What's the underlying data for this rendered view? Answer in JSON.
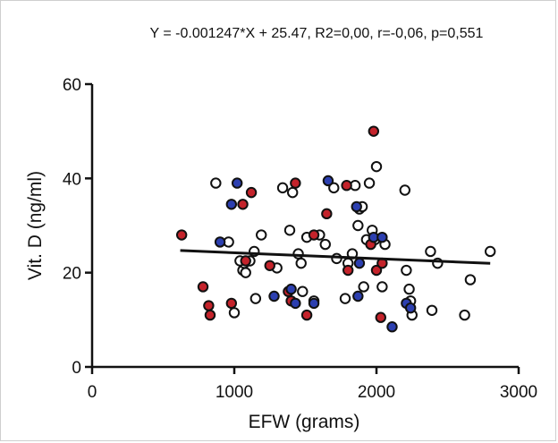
{
  "chart_data": {
    "type": "scatter",
    "title": "Y = -0.001247*X + 25.47, R2=0,00, r=-0,06, p=0,551",
    "xlabel": "EFW (grams)",
    "ylabel": "Vit. D (ng/ml)",
    "xlim": [
      0,
      3000
    ],
    "ylim": [
      0,
      60
    ],
    "xticks": [
      "0",
      "1000",
      "2000",
      "3000"
    ],
    "yticks": [
      "0",
      "20",
      "40",
      "60"
    ],
    "grid": false,
    "colors": {
      "white": "#ffffff",
      "red": "#c4232b",
      "blue": "#2c3fb0",
      "outline": "#111111"
    },
    "regression": {
      "slope": -0.001247,
      "intercept": 25.47,
      "x_range": [
        620,
        2800
      ]
    },
    "series": [
      {
        "color_key": "white",
        "points": [
          [
            870,
            39
          ],
          [
            1000,
            11.5
          ],
          [
            1060,
            20.5
          ],
          [
            1070,
            22
          ],
          [
            1080,
            20
          ],
          [
            1110,
            22.5
          ],
          [
            1140,
            24.5
          ],
          [
            1150,
            14.5
          ],
          [
            1190,
            28
          ],
          [
            1300,
            21
          ],
          [
            1340,
            38
          ],
          [
            1390,
            29
          ],
          [
            1410,
            37
          ],
          [
            1450,
            24
          ],
          [
            1470,
            22
          ],
          [
            1480,
            16
          ],
          [
            1510,
            27.5
          ],
          [
            1560,
            14
          ],
          [
            1600,
            28
          ],
          [
            1640,
            26
          ],
          [
            1700,
            38
          ],
          [
            1720,
            23
          ],
          [
            1780,
            14.5
          ],
          [
            1800,
            22
          ],
          [
            1830,
            24
          ],
          [
            1850,
            38.5
          ],
          [
            1870,
            30
          ],
          [
            1880,
            33.5
          ],
          [
            1900,
            34
          ],
          [
            1910,
            17
          ],
          [
            1930,
            27
          ],
          [
            1950,
            39
          ],
          [
            1970,
            29
          ],
          [
            1990,
            27
          ],
          [
            2000,
            42.5
          ],
          [
            2040,
            17
          ],
          [
            2060,
            26
          ],
          [
            2200,
            37.5
          ],
          [
            2210,
            20.5
          ],
          [
            2230,
            16.5
          ],
          [
            2240,
            14
          ],
          [
            2250,
            11
          ],
          [
            2380,
            24.5
          ],
          [
            2390,
            12
          ],
          [
            2430,
            22
          ],
          [
            2620,
            11
          ],
          [
            2660,
            18.5
          ],
          [
            2800,
            24.5
          ],
          [
            960,
            26.5
          ],
          [
            1040,
            22.5
          ]
        ]
      },
      {
        "color_key": "red",
        "points": [
          [
            630,
            28
          ],
          [
            780,
            17
          ],
          [
            820,
            13
          ],
          [
            830,
            11
          ],
          [
            980,
            13.5
          ],
          [
            1060,
            34.5
          ],
          [
            1080,
            22.5
          ],
          [
            1120,
            37
          ],
          [
            1250,
            21.5
          ],
          [
            1380,
            16
          ],
          [
            1400,
            14
          ],
          [
            1430,
            39
          ],
          [
            1510,
            11
          ],
          [
            1560,
            28
          ],
          [
            1650,
            32.5
          ],
          [
            1790,
            38.5
          ],
          [
            1800,
            20.5
          ],
          [
            1960,
            26
          ],
          [
            1980,
            50
          ],
          [
            2000,
            20.5
          ],
          [
            2030,
            10.5
          ],
          [
            2040,
            22
          ]
        ]
      },
      {
        "color_key": "blue",
        "points": [
          [
            900,
            26.5
          ],
          [
            980,
            34.5
          ],
          [
            1020,
            39
          ],
          [
            1280,
            15
          ],
          [
            1400,
            16.5
          ],
          [
            1430,
            13.5
          ],
          [
            1560,
            13.5
          ],
          [
            1660,
            39.5
          ],
          [
            1860,
            34
          ],
          [
            1870,
            15
          ],
          [
            1880,
            22
          ],
          [
            1980,
            27.5
          ],
          [
            2040,
            27.5
          ],
          [
            2210,
            13.5
          ],
          [
            2240,
            12.5
          ],
          [
            2110,
            8.5
          ]
        ]
      }
    ]
  }
}
